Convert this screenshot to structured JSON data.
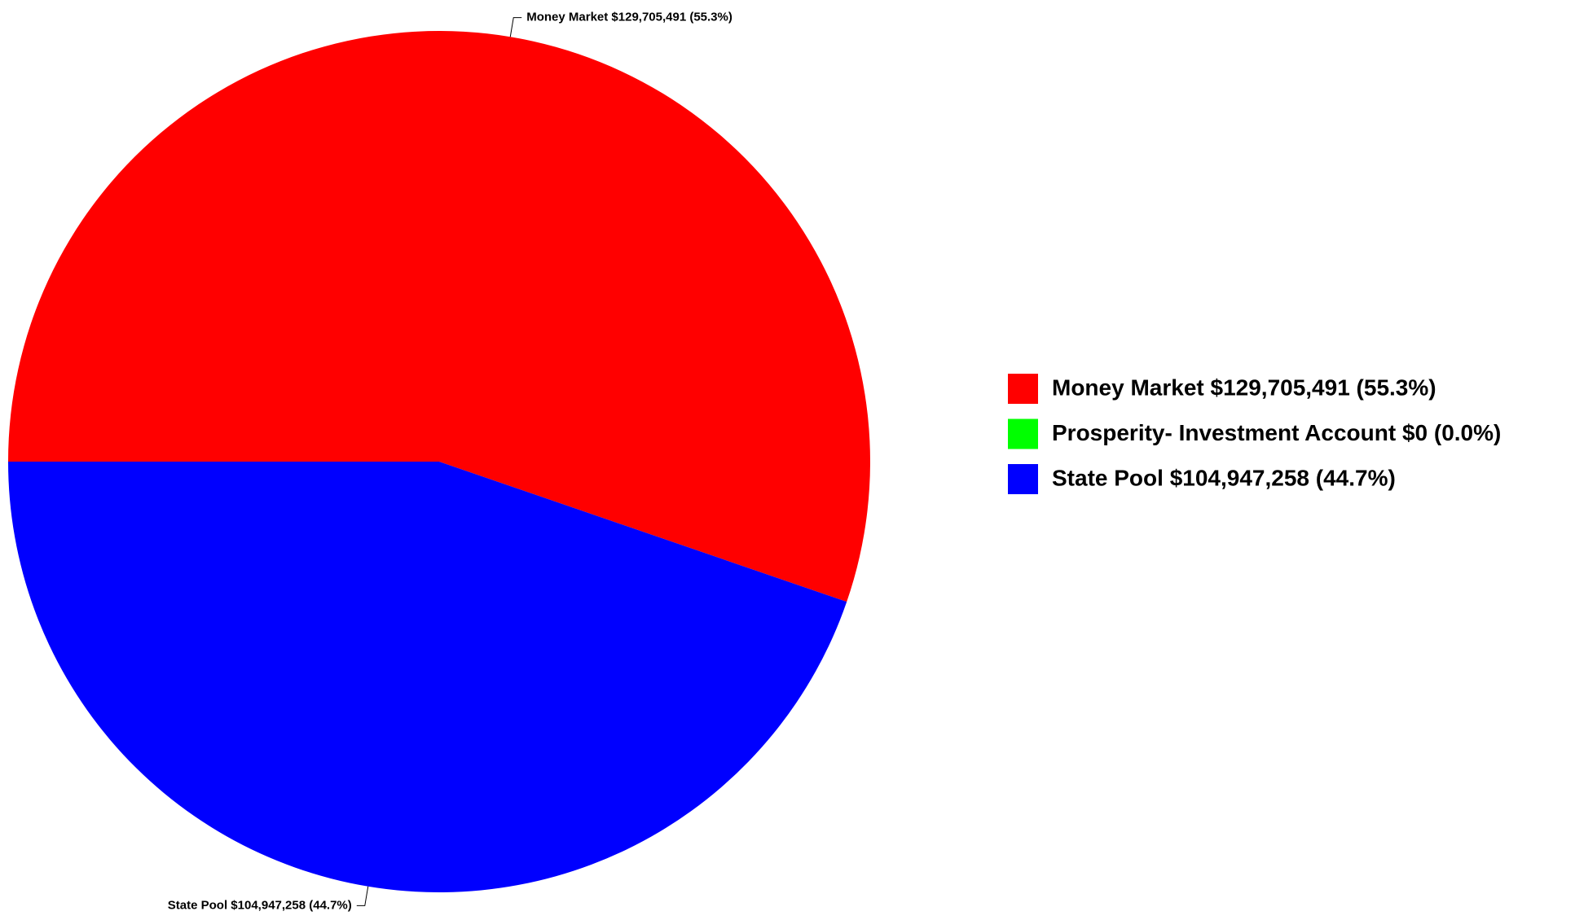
{
  "chart_data": {
    "type": "pie",
    "value_labels": [
      "Money Market $129,705,491 (55.3%)",
      "Prosperity- Investment Account $0 (0.0%)",
      "State Pool $104,947,258 (44.7%)"
    ],
    "values": [
      129705491,
      0,
      104947258
    ],
    "colors": [
      "#ff0000",
      "#00ff00",
      "#0000ff"
    ],
    "start_angle": 180,
    "clockwise": true,
    "legend": "right"
  }
}
